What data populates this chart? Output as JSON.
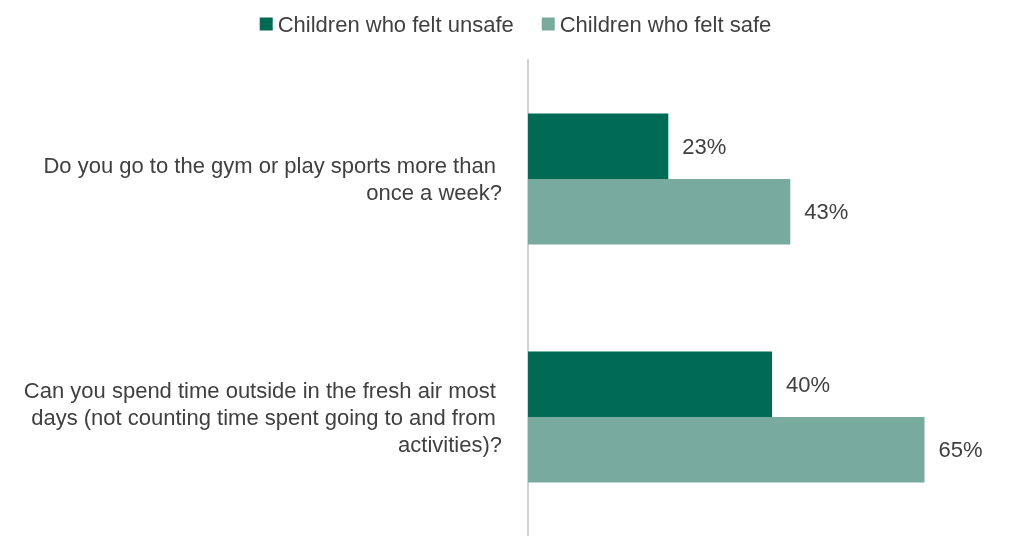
{
  "chart_data": {
    "type": "bar",
    "orientation": "horizontal",
    "categories": [
      "Do you go to the gym or play sports more than once a week?",
      "Can you spend time outside in the fresh air most days (not counting time spent going to and from activities)?"
    ],
    "series": [
      {
        "name": "Children who felt unsafe",
        "color": "#006b55",
        "values": [
          23,
          40
        ],
        "value_labels": [
          "23%",
          "40%"
        ]
      },
      {
        "name": "Children who felt safe",
        "color": "#78aa9d",
        "values": [
          43,
          65
        ],
        "value_labels": [
          "43%",
          "65%"
        ]
      }
    ],
    "legend": "top",
    "grid": false,
    "tick_labels": "y"
  }
}
